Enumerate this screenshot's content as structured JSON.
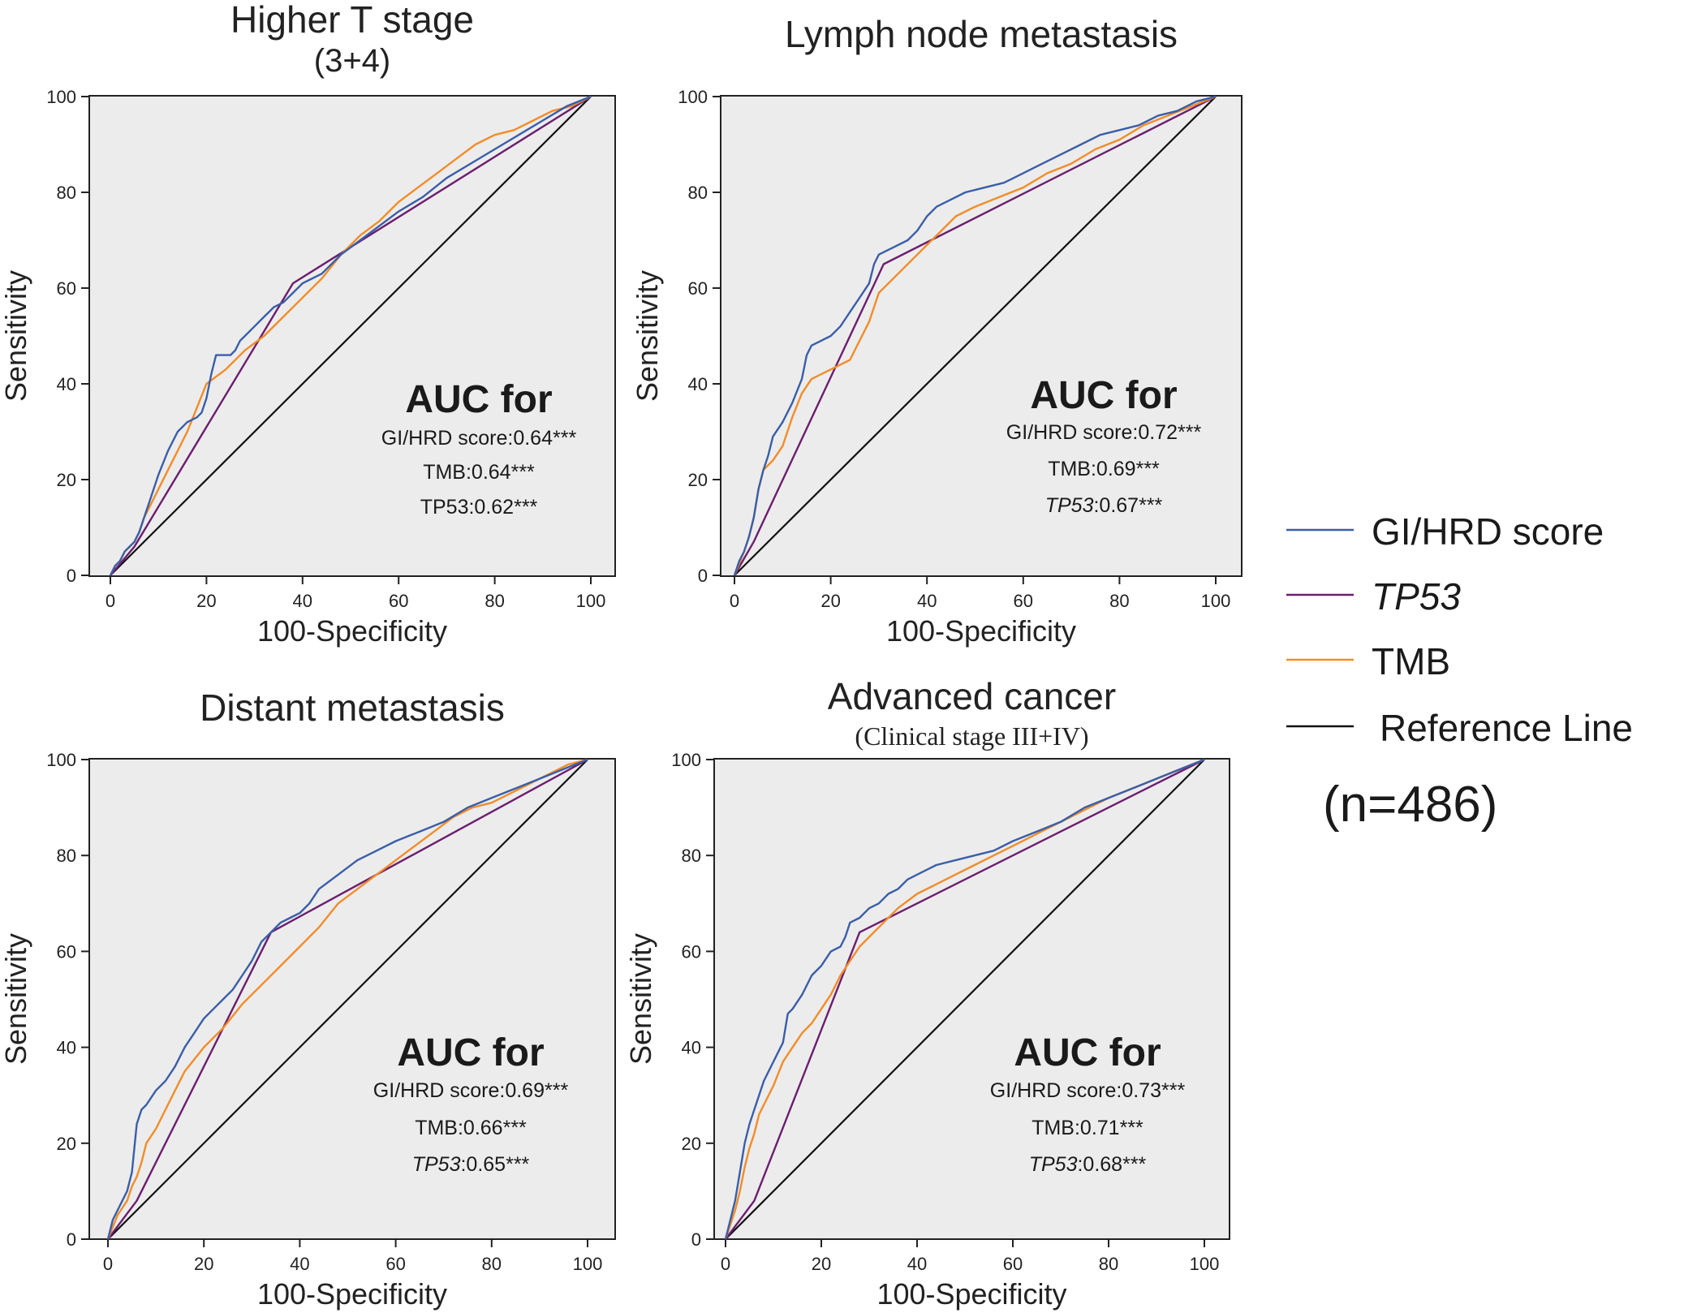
{
  "chart_data": [
    {
      "type": "line",
      "title": "Higher T stage",
      "subtitle": "(3+4)",
      "xlabel": "100-Specificity",
      "ylabel": "Sensitivity",
      "xlim": [
        0,
        100
      ],
      "ylim": [
        0,
        100
      ],
      "xticks": [
        0,
        20,
        40,
        60,
        80,
        100
      ],
      "yticks": [
        0,
        20,
        40,
        60,
        80,
        100
      ],
      "grid": false,
      "auc": {
        "heading": "AUC for",
        "entries": [
          {
            "name": "GI/HRD score",
            "value": "0.64***",
            "italic": false
          },
          {
            "name": "TMB",
            "value": "0.64***",
            "italic": false
          },
          {
            "name": "TP53",
            "value": "0.62***",
            "italic": false
          }
        ]
      },
      "series": [
        {
          "name": "GI/HRD score",
          "color": "#3a5ea8",
          "x": [
            0,
            1,
            2,
            3,
            4,
            5,
            6,
            7,
            8,
            9,
            10,
            12,
            14,
            16,
            18,
            19,
            20,
            21,
            22,
            24,
            25,
            26,
            27,
            28,
            30,
            32,
            33,
            34,
            36,
            38,
            40,
            44,
            48,
            52,
            56,
            60,
            65,
            70,
            75,
            80,
            85,
            90,
            95,
            100
          ],
          "y": [
            0,
            2,
            3,
            5,
            6,
            7,
            9,
            12,
            15,
            18,
            21,
            26,
            30,
            32,
            33,
            34,
            37,
            42,
            46,
            46,
            46,
            47,
            49,
            50,
            52,
            54,
            55,
            56,
            57,
            59,
            61,
            63,
            67,
            70,
            73,
            76,
            79,
            83,
            86,
            89,
            92,
            95,
            98,
            100
          ]
        },
        {
          "name": "TP53",
          "color": "#6b1e6e",
          "x": [
            0,
            5,
            38,
            100
          ],
          "y": [
            0,
            6,
            61,
            100
          ]
        },
        {
          "name": "TMB",
          "color": "#f28c28",
          "x": [
            0,
            1,
            2,
            3,
            4,
            5,
            6,
            7,
            8,
            10,
            12,
            14,
            16,
            18,
            20,
            24,
            28,
            32,
            36,
            40,
            44,
            48,
            52,
            56,
            60,
            64,
            68,
            72,
            76,
            80,
            84,
            88,
            92,
            96,
            100
          ],
          "y": [
            0,
            2,
            3,
            5,
            6,
            7,
            9,
            12,
            14,
            18,
            22,
            26,
            30,
            35,
            40,
            43,
            47,
            50,
            54,
            58,
            62,
            67,
            71,
            74,
            78,
            81,
            84,
            87,
            90,
            92,
            93,
            95,
            97,
            98,
            100
          ]
        }
      ]
    },
    {
      "type": "line",
      "title": "Lymph node metastasis",
      "xlabel": "100-Specificity",
      "ylabel": "Sensitivity",
      "xlim": [
        0,
        100
      ],
      "ylim": [
        0,
        100
      ],
      "xticks": [
        0,
        20,
        40,
        60,
        80,
        100
      ],
      "yticks": [
        0,
        20,
        40,
        60,
        80,
        100
      ],
      "grid": false,
      "auc": {
        "heading": "AUC for",
        "entries": [
          {
            "name": "GI/HRD score",
            "value": "0.72***",
            "italic": false
          },
          {
            "name": "TMB",
            "value": "0.69***",
            "italic": false
          },
          {
            "name": "TP53",
            "value": "0.67***",
            "italic": true
          }
        ]
      },
      "series": [
        {
          "name": "GI/HRD score",
          "color": "#3a5ea8",
          "x": [
            0,
            1,
            2,
            3,
            4,
            5,
            6,
            7,
            8,
            10,
            12,
            14,
            15,
            16,
            18,
            20,
            22,
            24,
            26,
            28,
            29,
            30,
            32,
            34,
            36,
            38,
            40,
            42,
            44,
            48,
            52,
            56,
            60,
            64,
            68,
            72,
            76,
            80,
            84,
            88,
            92,
            96,
            100
          ],
          "y": [
            0,
            3,
            5,
            8,
            12,
            18,
            22,
            25,
            29,
            32,
            36,
            41,
            46,
            48,
            49,
            50,
            52,
            55,
            58,
            61,
            65,
            67,
            68,
            69,
            70,
            72,
            75,
            77,
            78,
            80,
            81,
            82,
            84,
            86,
            88,
            90,
            92,
            93,
            94,
            96,
            97,
            99,
            100
          ]
        },
        {
          "name": "TP53",
          "color": "#6b1e6e",
          "x": [
            0,
            4,
            31,
            100
          ],
          "y": [
            0,
            7,
            65,
            100
          ]
        },
        {
          "name": "TMB",
          "color": "#f28c28",
          "x": [
            0,
            2,
            3,
            4,
            5,
            6,
            8,
            10,
            12,
            14,
            16,
            20,
            24,
            28,
            30,
            34,
            38,
            42,
            46,
            50,
            55,
            60,
            65,
            70,
            75,
            80,
            85,
            90,
            95,
            100
          ],
          "y": [
            0,
            5,
            8,
            12,
            18,
            22,
            24,
            27,
            33,
            38,
            41,
            43,
            45,
            53,
            59,
            63,
            67,
            71,
            75,
            77,
            79,
            81,
            84,
            86,
            89,
            91,
            94,
            96,
            98,
            100
          ]
        }
      ]
    },
    {
      "type": "line",
      "title": "Distant metastasis",
      "xlabel": "100-Specificity",
      "ylabel": "Sensitivity",
      "xlim": [
        0,
        100
      ],
      "ylim": [
        0,
        100
      ],
      "xticks": [
        0,
        20,
        40,
        60,
        80,
        100
      ],
      "yticks": [
        0,
        20,
        40,
        60,
        80,
        100
      ],
      "grid": false,
      "auc": {
        "heading": "AUC for",
        "entries": [
          {
            "name": "GI/HRD score",
            "value": "0.69***",
            "italic": false
          },
          {
            "name": "TMB",
            "value": "0.66***",
            "italic": false
          },
          {
            "name": "TP53",
            "value": "0.65***",
            "italic": true
          }
        ]
      },
      "series": [
        {
          "name": "GI/HRD score",
          "color": "#3a5ea8",
          "x": [
            0,
            1,
            2,
            3,
            4,
            5,
            6,
            7,
            8,
            10,
            12,
            14,
            16,
            18,
            20,
            22,
            24,
            26,
            28,
            30,
            32,
            34,
            36,
            38,
            40,
            42,
            44,
            48,
            52,
            56,
            60,
            65,
            70,
            75,
            80,
            85,
            90,
            95,
            100
          ],
          "y": [
            0,
            4,
            6,
            8,
            10,
            14,
            24,
            27,
            28,
            31,
            33,
            36,
            40,
            43,
            46,
            48,
            50,
            52,
            55,
            58,
            62,
            64,
            66,
            67,
            68,
            70,
            73,
            76,
            79,
            81,
            83,
            85,
            87,
            90,
            92,
            94,
            96,
            98,
            100
          ]
        },
        {
          "name": "TP53",
          "color": "#6b1e6e",
          "x": [
            0,
            6,
            34,
            100
          ],
          "y": [
            0,
            8,
            64,
            100
          ]
        },
        {
          "name": "TMB",
          "color": "#f28c28",
          "x": [
            0,
            2,
            4,
            5,
            6,
            7,
            8,
            10,
            12,
            14,
            16,
            20,
            24,
            28,
            32,
            36,
            40,
            44,
            48,
            52,
            56,
            60,
            64,
            68,
            72,
            76,
            80,
            84,
            88,
            92,
            96,
            100
          ],
          "y": [
            0,
            5,
            8,
            11,
            13,
            16,
            20,
            23,
            27,
            31,
            35,
            40,
            44,
            49,
            53,
            57,
            61,
            65,
            70,
            73,
            76,
            79,
            82,
            85,
            88,
            90,
            91,
            93,
            95,
            97,
            99,
            100
          ]
        }
      ]
    },
    {
      "type": "line",
      "title": "Advanced cancer",
      "subtitle": "(Clinical stage III+IV)",
      "xlabel": "100-Specificity",
      "ylabel": "Sensitivity",
      "xlim": [
        0,
        100
      ],
      "ylim": [
        0,
        100
      ],
      "xticks": [
        0,
        20,
        40,
        60,
        80,
        100
      ],
      "yticks": [
        0,
        20,
        40,
        60,
        80,
        100
      ],
      "grid": false,
      "auc": {
        "heading": "AUC for",
        "entries": [
          {
            "name": "GI/HRD score",
            "value": "0.73***",
            "italic": false
          },
          {
            "name": "TMB",
            "value": "0.71***",
            "italic": false
          },
          {
            "name": "TP53",
            "value": "0.68***",
            "italic": true
          }
        ]
      },
      "series": [
        {
          "name": "GI/HRD score",
          "color": "#3a5ea8",
          "x": [
            0,
            1,
            2,
            3,
            4,
            5,
            6,
            7,
            8,
            10,
            12,
            13,
            14,
            16,
            18,
            20,
            22,
            24,
            25,
            26,
            28,
            30,
            32,
            34,
            36,
            38,
            40,
            44,
            48,
            52,
            56,
            60,
            65,
            70,
            75,
            80,
            85,
            90,
            95,
            100
          ],
          "y": [
            0,
            4,
            8,
            14,
            20,
            24,
            27,
            30,
            33,
            37,
            41,
            47,
            48,
            51,
            55,
            57,
            60,
            61,
            63,
            66,
            67,
            69,
            70,
            72,
            73,
            75,
            76,
            78,
            79,
            80,
            81,
            83,
            85,
            87,
            90,
            92,
            94,
            96,
            98,
            100
          ]
        },
        {
          "name": "TP53",
          "color": "#6b1e6e",
          "x": [
            0,
            6,
            28,
            100
          ],
          "y": [
            0,
            8,
            64,
            100
          ]
        },
        {
          "name": "TMB",
          "color": "#f28c28",
          "x": [
            0,
            1,
            2,
            3,
            4,
            5,
            6,
            7,
            8,
            10,
            12,
            14,
            16,
            18,
            20,
            22,
            24,
            26,
            28,
            32,
            36,
            40,
            44,
            48,
            52,
            56,
            60,
            64,
            68,
            72,
            76,
            80,
            85,
            90,
            95,
            100
          ],
          "y": [
            0,
            3,
            6,
            10,
            15,
            19,
            22,
            26,
            28,
            32,
            37,
            40,
            43,
            45,
            48,
            51,
            55,
            58,
            61,
            65,
            69,
            72,
            74,
            76,
            78,
            80,
            82,
            84,
            86,
            88,
            90,
            92,
            94,
            96,
            98,
            100
          ]
        }
      ]
    }
  ],
  "legend": {
    "items": [
      {
        "label": "GI/HRD score",
        "color": "#3a5ea8",
        "italic": false
      },
      {
        "label": "TP53",
        "color": "#6b1e6e",
        "italic": true
      },
      {
        "label": "TMB",
        "color": "#f28c28",
        "italic": false
      },
      {
        "label": "Reference Line",
        "color": "#111111",
        "italic": false
      }
    ],
    "sample_size": "(n=486)"
  },
  "colors": {
    "plot_background": "#ececec",
    "axis": "#222222",
    "reference_line": "#111111"
  }
}
